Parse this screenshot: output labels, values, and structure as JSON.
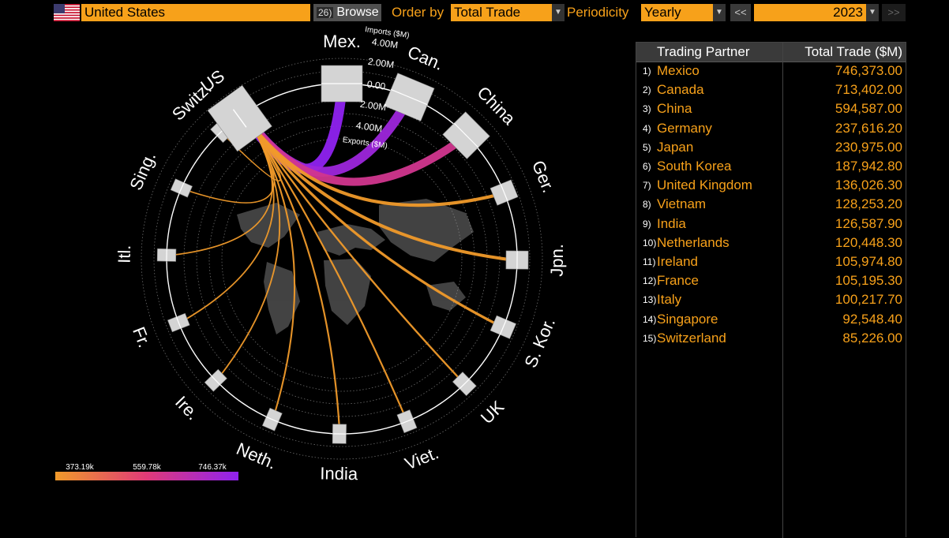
{
  "toolbar": {
    "country": "United States",
    "browse_count": "26)",
    "browse_label": "Browse",
    "order_by_label": "Order by",
    "order_by_value": "Total Trade",
    "periodicity_label": "Periodicity",
    "periodicity_value": "Yearly",
    "prev_label": "<<",
    "year": "2023",
    "next_label": ">>",
    "dropdown_glyph": "▼"
  },
  "chart_data": {
    "type": "chord",
    "center": "US",
    "partners": [
      {
        "label": "Mex.",
        "total": 746373.0
      },
      {
        "label": "Can.",
        "total": 713402.0
      },
      {
        "label": "China",
        "total": 594587.0
      },
      {
        "label": "Ger.",
        "total": 237616.2
      },
      {
        "label": "Jpn.",
        "total": 230975.0
      },
      {
        "label": "S. Kor.",
        "total": 187942.8
      },
      {
        "label": "UK",
        "total": 136026.3
      },
      {
        "label": "Viet.",
        "total": 128253.2
      },
      {
        "label": "India",
        "total": 126587.9
      },
      {
        "label": "Neth.",
        "total": 120448.3
      },
      {
        "label": "Ire.",
        "total": 105974.8
      },
      {
        "label": "Fr.",
        "total": 105195.3
      },
      {
        "label": "Itl.",
        "total": 100217.7
      },
      {
        "label": "Sing.",
        "total": 92548.4
      },
      {
        "label": "Switz.",
        "total": 85226.0
      }
    ],
    "radial_axis": {
      "imports_label": "Imports ($M)",
      "exports_label": "Exports ($M)",
      "ticks": [
        "4.00M",
        "2.00M",
        "0.00",
        "2.00M",
        "4.00M"
      ]
    },
    "color_scale": {
      "labels": [
        "373.19k",
        "559.78k",
        "746.37k"
      ],
      "min": 373190,
      "max": 746370,
      "colors": [
        "#f09a2a",
        "#e03a78",
        "#8f22f0"
      ]
    }
  },
  "table": {
    "headers": {
      "partner": "Trading Partner",
      "total": "Total Trade ($M)"
    },
    "rows": [
      {
        "num": "1)",
        "name": "Mexico",
        "value": "746,373.00"
      },
      {
        "num": "2)",
        "name": "Canada",
        "value": "713,402.00"
      },
      {
        "num": "3)",
        "name": "China",
        "value": "594,587.00"
      },
      {
        "num": "4)",
        "name": "Germany",
        "value": "237,616.20"
      },
      {
        "num": "5)",
        "name": "Japan",
        "value": "230,975.00"
      },
      {
        "num": "6)",
        "name": "South Korea",
        "value": "187,942.80"
      },
      {
        "num": "7)",
        "name": "United Kingdom",
        "value": "136,026.30"
      },
      {
        "num": "8)",
        "name": "Vietnam",
        "value": "128,253.20"
      },
      {
        "num": "9)",
        "name": "India",
        "value": "126,587.90"
      },
      {
        "num": "10)",
        "name": "Netherlands",
        "value": "120,448.30"
      },
      {
        "num": "11)",
        "name": "Ireland",
        "value": "105,974.80"
      },
      {
        "num": "12)",
        "name": "France",
        "value": "105,195.30"
      },
      {
        "num": "13)",
        "name": "Italy",
        "value": "100,217.70"
      },
      {
        "num": "14)",
        "name": "Singapore",
        "value": "92,548.40"
      },
      {
        "num": "15)",
        "name": "Switzerland",
        "value": "85,226.00"
      }
    ]
  }
}
